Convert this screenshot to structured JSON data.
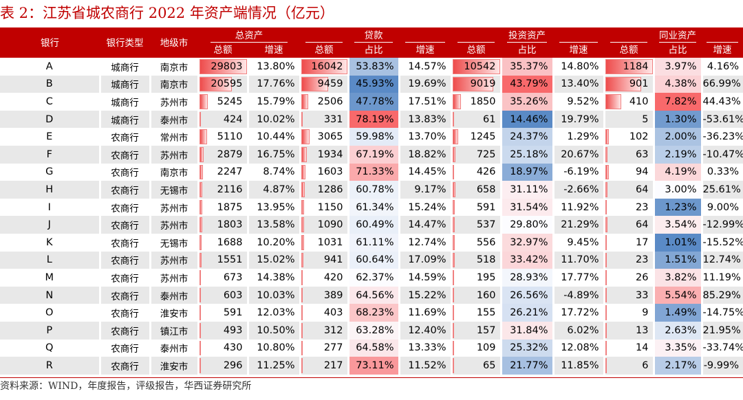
{
  "title": "表 2：江苏省城农商行 2022 年资产端情况（亿元）",
  "source": "资料来源：WIND，年度报告，评级报告，华西证券研究所",
  "colors": {
    "accent": "#c00000",
    "red": "#f4646a",
    "blue": "#4f81c7"
  },
  "headers": {
    "bank": "银行",
    "type": "银行类型",
    "city": "地级市",
    "total_assets": "总资产",
    "loans": "贷款",
    "investment": "投资资产",
    "interbank": "同业资产",
    "amount": "总额",
    "growth": "增速",
    "share": "占比"
  },
  "max_values": {
    "total_assets": 29803,
    "loans": 16042,
    "investment": 10542,
    "interbank": 1184
  },
  "rows": [
    {
      "bank": "A",
      "type": "城商行",
      "city": "南京市",
      "ta": "29803",
      "ta_g": "13.80%",
      "ln": "16042",
      "ln_s": "53.83%",
      "ln_g": "14.57%",
      "inv": "10542",
      "inv_s": "35.37%",
      "inv_g": "14.80%",
      "ib": "1184",
      "ib_s": "3.97%",
      "ib_g": "4.16%"
    },
    {
      "bank": "B",
      "type": "城商行",
      "city": "南京市",
      "ta": "20595",
      "ta_g": "17.76%",
      "ln": "9459",
      "ln_s": "45.93%",
      "ln_g": "19.69%",
      "inv": "9019",
      "inv_s": "43.79%",
      "inv_g": "13.40%",
      "ib": "901",
      "ib_s": "4.38%",
      "ib_g": "66.99%"
    },
    {
      "bank": "C",
      "type": "城商行",
      "city": "苏州市",
      "ta": "5245",
      "ta_g": "15.79%",
      "ln": "2506",
      "ln_s": "47.78%",
      "ln_g": "17.51%",
      "inv": "1850",
      "inv_s": "35.26%",
      "inv_g": "9.52%",
      "ib": "410",
      "ib_s": "7.82%",
      "ib_g": "44.43%"
    },
    {
      "bank": "D",
      "type": "城商行",
      "city": "泰州市",
      "ta": "424",
      "ta_g": "10.02%",
      "ln": "331",
      "ln_s": "78.19%",
      "ln_g": "13.83%",
      "inv": "61",
      "inv_s": "14.46%",
      "inv_g": "19.79%",
      "ib": "5",
      "ib_s": "1.30%",
      "ib_g": "-53.61%"
    },
    {
      "bank": "E",
      "type": "农商行",
      "city": "常州市",
      "ta": "5110",
      "ta_g": "10.44%",
      "ln": "3065",
      "ln_s": "59.98%",
      "ln_g": "13.70%",
      "inv": "1245",
      "inv_s": "24.37%",
      "inv_g": "1.29%",
      "ib": "102",
      "ib_s": "2.00%",
      "ib_g": "-36.23%"
    },
    {
      "bank": "F",
      "type": "农商行",
      "city": "苏州市",
      "ta": "2879",
      "ta_g": "16.75%",
      "ln": "1934",
      "ln_s": "67.19%",
      "ln_g": "18.82%",
      "inv": "725",
      "inv_s": "25.18%",
      "inv_g": "20.67%",
      "ib": "63",
      "ib_s": "2.19%",
      "ib_g": "-10.47%"
    },
    {
      "bank": "G",
      "type": "农商行",
      "city": "南京市",
      "ta": "2247",
      "ta_g": "8.74%",
      "ln": "1603",
      "ln_s": "71.33%",
      "ln_g": "14.45%",
      "inv": "426",
      "inv_s": "18.97%",
      "inv_g": "-6.19%",
      "ib": "94",
      "ib_s": "4.19%",
      "ib_g": "0.33%"
    },
    {
      "bank": "H",
      "type": "农商行",
      "city": "无锡市",
      "ta": "2116",
      "ta_g": "4.87%",
      "ln": "1286",
      "ln_s": "60.78%",
      "ln_g": "9.17%",
      "inv": "658",
      "inv_s": "31.11%",
      "inv_g": "-2.66%",
      "ib": "64",
      "ib_s": "3.00%",
      "ib_g": "25.61%"
    },
    {
      "bank": "I",
      "type": "农商行",
      "city": "苏州市",
      "ta": "1875",
      "ta_g": "13.95%",
      "ln": "1150",
      "ln_s": "61.34%",
      "ln_g": "15.24%",
      "inv": "591",
      "inv_s": "31.54%",
      "inv_g": "11.92%",
      "ib": "23",
      "ib_s": "1.23%",
      "ib_g": "9.00%"
    },
    {
      "bank": "J",
      "type": "农商行",
      "city": "苏州市",
      "ta": "1803",
      "ta_g": "13.58%",
      "ln": "1090",
      "ln_s": "60.49%",
      "ln_g": "14.47%",
      "inv": "537",
      "inv_s": "29.80%",
      "inv_g": "21.29%",
      "ib": "64",
      "ib_s": "3.54%",
      "ib_g": "-12.99%"
    },
    {
      "bank": "K",
      "type": "农商行",
      "city": "无锡市",
      "ta": "1688",
      "ta_g": "10.20%",
      "ln": "1031",
      "ln_s": "61.11%",
      "ln_g": "12.74%",
      "inv": "556",
      "inv_s": "32.97%",
      "inv_g": "9.45%",
      "ib": "17",
      "ib_s": "1.01%",
      "ib_g": "-15.52%"
    },
    {
      "bank": "L",
      "type": "农商行",
      "city": "苏州市",
      "ta": "1551",
      "ta_g": "15.02%",
      "ln": "941",
      "ln_s": "60.64%",
      "ln_g": "17.09%",
      "inv": "518",
      "inv_s": "33.42%",
      "inv_g": "11.70%",
      "ib": "23",
      "ib_s": "1.51%",
      "ib_g": "12.74%"
    },
    {
      "bank": "M",
      "type": "农商行",
      "city": "苏州市",
      "ta": "673",
      "ta_g": "14.38%",
      "ln": "420",
      "ln_s": "62.37%",
      "ln_g": "14.59%",
      "inv": "195",
      "inv_s": "28.93%",
      "inv_g": "17.77%",
      "ib": "26",
      "ib_s": "3.82%",
      "ib_g": "11.19%"
    },
    {
      "bank": "N",
      "type": "农商行",
      "city": "泰州市",
      "ta": "603",
      "ta_g": "10.03%",
      "ln": "389",
      "ln_s": "64.56%",
      "ln_g": "15.22%",
      "inv": "160",
      "inv_s": "26.56%",
      "inv_g": "-4.89%",
      "ib": "33",
      "ib_s": "5.54%",
      "ib_g": "85.29%"
    },
    {
      "bank": "O",
      "type": "农商行",
      "city": "淮安市",
      "ta": "591",
      "ta_g": "12.03%",
      "ln": "403",
      "ln_s": "68.23%",
      "ln_g": "11.69%",
      "inv": "155",
      "inv_s": "26.21%",
      "inv_g": "17.72%",
      "ib": "9",
      "ib_s": "1.49%",
      "ib_g": "-14.75%"
    },
    {
      "bank": "P",
      "type": "农商行",
      "city": "镇江市",
      "ta": "493",
      "ta_g": "10.50%",
      "ln": "312",
      "ln_s": "63.28%",
      "ln_g": "12.40%",
      "inv": "157",
      "inv_s": "31.84%",
      "inv_g": "6.02%",
      "ib": "13",
      "ib_s": "2.63%",
      "ib_g": "21.95%"
    },
    {
      "bank": "Q",
      "type": "农商行",
      "city": "泰州市",
      "ta": "430",
      "ta_g": "10.80%",
      "ln": "277",
      "ln_s": "64.58%",
      "ln_g": "13.33%",
      "inv": "109",
      "inv_s": "25.32%",
      "inv_g": "12.08%",
      "ib": "14",
      "ib_s": "3.35%",
      "ib_g": "-33.74%"
    },
    {
      "bank": "R",
      "type": "农商行",
      "city": "淮安市",
      "ta": "296",
      "ta_g": "11.25%",
      "ln": "217",
      "ln_s": "73.11%",
      "ln_g": "11.52%",
      "inv": "65",
      "inv_s": "21.77%",
      "inv_g": "11.85%",
      "ib": "6",
      "ib_s": "2.17%",
      "ib_g": "-9.99%"
    }
  ]
}
